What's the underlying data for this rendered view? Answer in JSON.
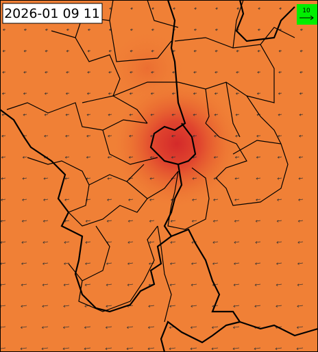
{
  "timestamp": "2026-01 09 11",
  "legend": {
    "label": "10"
  }
}
